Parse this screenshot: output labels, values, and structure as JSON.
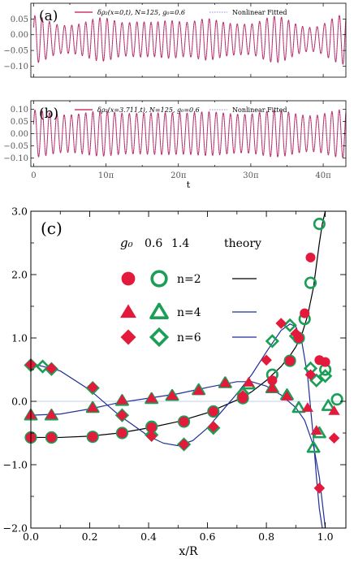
{
  "colors": {
    "red": "#e31a3c",
    "green": "#1b9e55",
    "crimson": "#c8104a",
    "navy": "#1f2f9a",
    "fit": "#8c8cd8",
    "ref": "#aec3e0"
  },
  "chart_data": [
    {
      "type": "line",
      "panel_label": "(a)",
      "legend": [
        "δρ₂(x=0,t), N=125, g₀=0.6",
        "Nonlinear Fitted"
      ],
      "legend_placement": "top",
      "xlim": [
        -1.2,
        135.5
      ],
      "ylim": [
        -0.135,
        0.1
      ],
      "yticks": [
        "0.05",
        "0.00",
        "−0.05",
        "−0.10"
      ],
      "ytick_values": [
        0.05,
        0,
        -0.05,
        -0.1
      ],
      "signal": {
        "offset": -0.015,
        "fast_amp": 0.055,
        "fast_freq": 2.0,
        "slow_amp": 0.025,
        "slow_freq": 1.55,
        "cycles": 44
      }
    },
    {
      "type": "line",
      "panel_label": "(b)",
      "legend": [
        "δρ₂(x=3.711,t), N=125, g₀=0.6",
        "Nonlinear Fitted"
      ],
      "legend_placement": "top",
      "xlim": [
        -1.2,
        135.5
      ],
      "ylim": [
        -0.135,
        0.135
      ],
      "yticks": [
        "0.10",
        "0.05",
        "0.00",
        "−0.05",
        "−0.10"
      ],
      "ytick_values": [
        0.1,
        0.05,
        0,
        -0.05,
        -0.1
      ],
      "xticks": [
        "0",
        "10π",
        "20π",
        "30π",
        "40π"
      ],
      "xtick_values": [
        0,
        31.4159,
        62.8319,
        94.2478,
        125.6637
      ],
      "xlabel": "t",
      "signal": {
        "offset": 0.0,
        "fast_amp": 0.085,
        "fast_freq": 2.0,
        "slow_amp": 0.015,
        "slow_freq": 1.55,
        "cycles": 44
      }
    },
    {
      "type": "scatter",
      "panel_label": "(c)",
      "xlabel": "x/R",
      "xlim": [
        0,
        1.07
      ],
      "ylim": [
        -2,
        3
      ],
      "xticks": [
        "0.0",
        "0.2",
        "0.4",
        "0.6",
        "0.8",
        "1.0"
      ],
      "xtick_values": [
        0,
        0.2,
        0.4,
        0.6,
        0.8,
        1.0
      ],
      "yticks": [
        "3.0",
        "2.0",
        "1.0",
        "0.0",
        "−1.0",
        "−2.0"
      ],
      "ytick_values": [
        3,
        2,
        1,
        0,
        -1,
        -2
      ],
      "legend": {
        "g0_label": "g₀",
        "g0_values": [
          "0.6",
          "1.4"
        ],
        "theory_label": "theory",
        "n_labels": [
          "n=2",
          "n=4",
          "n=6"
        ],
        "placement": "top-center"
      },
      "series": [
        {
          "n": 2,
          "g0": 0.6,
          "marker": "circle-filled",
          "x": [
            0,
            0.07,
            0.21,
            0.31,
            0.41,
            0.52,
            0.62,
            0.72,
            0.82,
            0.88,
            0.91,
            0.93,
            0.95,
            0.98,
            1.0
          ],
          "y": [
            -0.57,
            -0.57,
            -0.56,
            -0.5,
            -0.41,
            -0.32,
            -0.16,
            0.05,
            0.33,
            0.64,
            1.0,
            1.39,
            2.27,
            0.65,
            0.62
          ]
        },
        {
          "n": 2,
          "g0": 1.4,
          "marker": "circle-open",
          "x": [
            0,
            0.07,
            0.21,
            0.31,
            0.41,
            0.52,
            0.62,
            0.72,
            0.82,
            0.88,
            0.91,
            0.93,
            0.95,
            0.98,
            1.0,
            1.04
          ],
          "y": [
            -0.57,
            -0.57,
            -0.56,
            -0.5,
            -0.4,
            -0.32,
            -0.16,
            0.05,
            0.42,
            0.64,
            1.0,
            1.3,
            1.87,
            2.8,
            0.5,
            0.03
          ]
        },
        {
          "n": 4,
          "g0": 0.6,
          "marker": "triangle-filled",
          "x": [
            0,
            0.07,
            0.21,
            0.31,
            0.41,
            0.48,
            0.57,
            0.66,
            0.74,
            0.82,
            0.87,
            0.94,
            0.97,
            1.03
          ],
          "y": [
            -0.21,
            -0.21,
            -0.1,
            0.02,
            0.05,
            0.09,
            0.17,
            0.29,
            0.3,
            0.21,
            0.08,
            -0.1,
            -0.46,
            -0.15
          ]
        },
        {
          "n": 4,
          "g0": 1.4,
          "marker": "triangle-open",
          "x": [
            0,
            0.07,
            0.21,
            0.31,
            0.41,
            0.48,
            0.57,
            0.66,
            0.74,
            0.82,
            0.87,
            0.91,
            0.96,
            0.98,
            1.01
          ],
          "y": [
            -0.22,
            -0.22,
            -0.1,
            0.01,
            0.04,
            0.09,
            0.18,
            0.29,
            0.27,
            0.21,
            0.1,
            -0.1,
            -0.73,
            -0.5,
            -0.07
          ]
        },
        {
          "n": 6,
          "g0": 0.6,
          "marker": "diamond-filled",
          "x": [
            0,
            0.07,
            0.21,
            0.31,
            0.41,
            0.52,
            0.62,
            0.72,
            0.8,
            0.85,
            0.9,
            0.95,
            0.98,
            1.03
          ],
          "y": [
            0.58,
            0.52,
            0.22,
            -0.22,
            -0.55,
            -0.68,
            -0.4,
            0.09,
            0.65,
            1.23,
            1.07,
            0.42,
            -1.37,
            -0.58
          ]
        },
        {
          "n": 6,
          "g0": 1.4,
          "marker": "diamond-open",
          "x": [
            0,
            0.04,
            0.07,
            0.21,
            0.31,
            0.41,
            0.52,
            0.62,
            0.72,
            0.82,
            0.88,
            0.9,
            0.95,
            0.97,
            1.0
          ],
          "y": [
            0.57,
            0.55,
            0.51,
            0.21,
            -0.22,
            -0.53,
            -0.68,
            -0.42,
            0.12,
            0.95,
            1.2,
            1.03,
            0.52,
            0.33,
            0.4
          ]
        }
      ],
      "theory": [
        {
          "n": 2,
          "x": [
            0,
            0.1,
            0.2,
            0.3,
            0.4,
            0.5,
            0.6,
            0.7,
            0.75,
            0.8,
            0.85,
            0.88,
            0.9,
            0.92,
            0.94,
            0.96,
            0.98,
            0.99,
            1.0
          ],
          "y": [
            -0.57,
            -0.57,
            -0.55,
            -0.5,
            -0.42,
            -0.32,
            -0.18,
            0.02,
            0.15,
            0.33,
            0.55,
            0.72,
            0.86,
            1.05,
            1.35,
            1.8,
            2.5,
            2.8,
            3.0
          ]
        },
        {
          "n": 4,
          "x": [
            0,
            0.1,
            0.2,
            0.3,
            0.4,
            0.5,
            0.6,
            0.7,
            0.75,
            0.8,
            0.85,
            0.9,
            0.93,
            0.96,
            0.98,
            0.99,
            1.0
          ],
          "y": [
            -0.22,
            -0.2,
            -0.12,
            -0.02,
            0.05,
            0.12,
            0.22,
            0.31,
            0.31,
            0.24,
            0.1,
            -0.1,
            -0.3,
            -0.7,
            -1.2,
            -1.6,
            -2.0
          ]
        },
        {
          "n": 6,
          "x": [
            0,
            0.1,
            0.2,
            0.3,
            0.4,
            0.45,
            0.5,
            0.55,
            0.6,
            0.65,
            0.7,
            0.75,
            0.8,
            0.85,
            0.88,
            0.9,
            0.92,
            0.94,
            0.96,
            0.97,
            0.98,
            0.99,
            1.0
          ],
          "y": [
            0.6,
            0.48,
            0.18,
            -0.22,
            -0.55,
            -0.66,
            -0.7,
            -0.62,
            -0.42,
            -0.15,
            0.12,
            0.42,
            0.78,
            1.12,
            1.22,
            1.18,
            0.95,
            0.4,
            -0.6,
            -1.2,
            -1.7,
            -2.0,
            -2.0
          ]
        }
      ]
    }
  ]
}
